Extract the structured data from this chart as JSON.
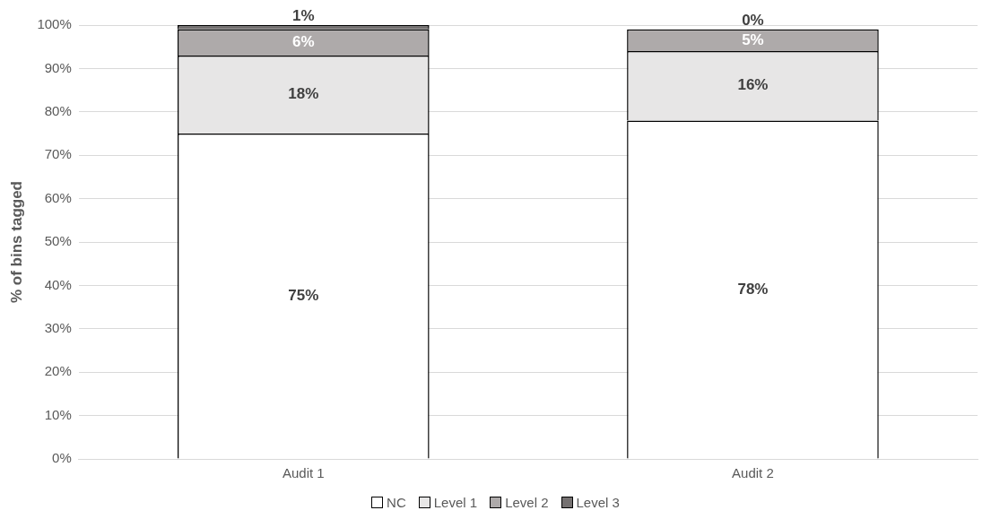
{
  "chart_data": {
    "type": "bar",
    "stacked": true,
    "ylabel": "% of bins tagged",
    "categories": [
      "Audit 1",
      "Audit 2"
    ],
    "series": [
      {
        "name": "NC",
        "color": "#ffffff",
        "values": [
          75,
          78
        ],
        "value_labels": [
          "75%",
          "78%"
        ]
      },
      {
        "name": "Level 1",
        "color": "#e7e6e6",
        "values": [
          18,
          16
        ],
        "value_labels": [
          "18%",
          "16%"
        ]
      },
      {
        "name": "Level 2",
        "color": "#aeaaaa",
        "values": [
          6,
          5
        ],
        "value_labels": [
          "6%",
          "5%"
        ]
      },
      {
        "name": "Level 3",
        "color": "#757171",
        "values": [
          1,
          0
        ],
        "value_labels": [
          "1%",
          "0%"
        ]
      }
    ],
    "ylim": [
      0,
      100
    ],
    "yticks": [
      {
        "value": 0,
        "label": "0%"
      },
      {
        "value": 10,
        "label": "10%"
      },
      {
        "value": 20,
        "label": "20%"
      },
      {
        "value": 30,
        "label": "30%"
      },
      {
        "value": 40,
        "label": "40%"
      },
      {
        "value": 50,
        "label": "50%"
      },
      {
        "value": 60,
        "label": "60%"
      },
      {
        "value": 70,
        "label": "70%"
      },
      {
        "value": 80,
        "label": "80%"
      },
      {
        "value": 90,
        "label": "90%"
      },
      {
        "value": 100,
        "label": "100%"
      }
    ],
    "grid": "y",
    "legend": "bottom"
  }
}
